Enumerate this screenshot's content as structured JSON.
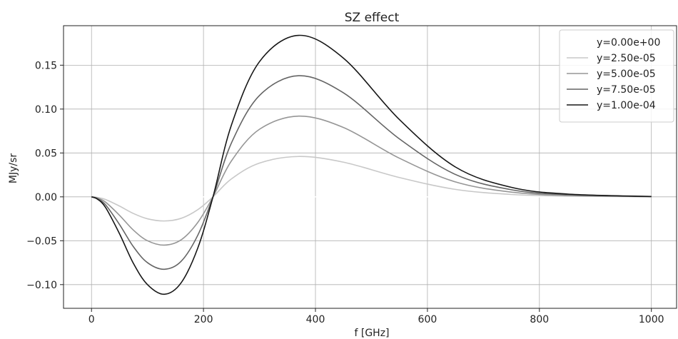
{
  "chart_data": {
    "type": "line",
    "title": "SZ effect",
    "xlabel": "f [GHz]",
    "ylabel": "MJy/sr",
    "xlim": [
      -50,
      1045
    ],
    "ylim": [
      -0.127,
      0.195
    ],
    "xticks": [
      0,
      200,
      400,
      600,
      800,
      1000
    ],
    "xtick_labels": [
      "0",
      "200",
      "400",
      "600",
      "800",
      "1000"
    ],
    "yticks": [
      -0.1,
      -0.05,
      0.0,
      0.05,
      0.1,
      0.15
    ],
    "ytick_labels": [
      "−0.10",
      "−0.05",
      "0.00",
      "0.05",
      "0.10",
      "0.15"
    ],
    "grid": true,
    "legend_position": "top-right",
    "x": [
      0,
      10,
      25,
      50,
      75,
      100,
      130,
      160,
      190,
      217,
      250,
      300,
      370,
      450,
      550,
      650,
      750,
      850,
      1000
    ],
    "series": [
      {
        "name": "y=0.00e+00",
        "color": "#ffffff",
        "values": [
          0,
          0,
          0,
          0,
          0,
          0,
          0,
          0,
          0,
          0,
          0,
          0,
          0,
          0,
          0,
          0,
          0,
          0,
          0
        ]
      },
      {
        "name": "y=2.50e-05",
        "color": "#c8c8c8",
        "values": [
          0,
          -0.0006,
          -0.003,
          -0.0105,
          -0.019,
          -0.025,
          -0.0275,
          -0.0245,
          -0.0145,
          0,
          0.0205,
          0.0385,
          0.046,
          0.0395,
          0.022,
          0.0085,
          0.0027,
          0.0008,
          0.0001
        ]
      },
      {
        "name": "y=5.00e-05",
        "color": "#969696",
        "values": [
          0,
          -0.0012,
          -0.006,
          -0.021,
          -0.038,
          -0.05,
          -0.055,
          -0.049,
          -0.029,
          0,
          0.041,
          0.077,
          0.092,
          0.079,
          0.044,
          0.017,
          0.0054,
          0.0016,
          0.0002
        ]
      },
      {
        "name": "y=7.50e-05",
        "color": "#646464",
        "values": [
          0,
          -0.0018,
          -0.009,
          -0.0315,
          -0.057,
          -0.075,
          -0.0825,
          -0.0735,
          -0.0435,
          0,
          0.0615,
          0.1155,
          0.138,
          0.1185,
          0.066,
          0.0255,
          0.0081,
          0.0024,
          0.0003
        ]
      },
      {
        "name": "y=1.00e-04",
        "color": "#161616",
        "values": [
          0,
          -0.0024,
          -0.012,
          -0.042,
          -0.076,
          -0.1,
          -0.111,
          -0.098,
          -0.058,
          0,
          0.082,
          0.154,
          0.184,
          0.158,
          0.088,
          0.034,
          0.0108,
          0.0032,
          0.0004
        ]
      }
    ]
  }
}
